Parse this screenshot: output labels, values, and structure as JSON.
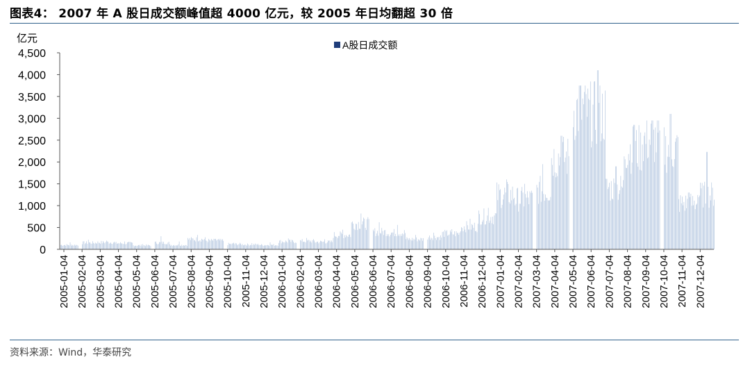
{
  "title": "图表4： 2007 年 A 股日成交额峰值超 4000 亿元，较 2005 年日均翻超 30 倍",
  "source": "资料来源：Wind，华泰研究",
  "chart_data": {
    "type": "bar",
    "unit_label": "亿元",
    "legend": [
      "A股日成交额"
    ],
    "legend_position": "top-center",
    "ylim": [
      0,
      4500
    ],
    "yticks": [
      0,
      500,
      1000,
      1500,
      2000,
      2500,
      3000,
      3500,
      4000,
      4500
    ],
    "ytick_labels": [
      "0",
      "500",
      "1,000",
      "1,500",
      "2,000",
      "2,500",
      "3,000",
      "3,500",
      "4,000",
      "4,500"
    ],
    "xtick_labels": [
      "2005-01-04",
      "2005-02-04",
      "2005-03-04",
      "2005-04-04",
      "2005-05-04",
      "2005-06-04",
      "2005-07-04",
      "2005-08-04",
      "2005-09-04",
      "2005-10-04",
      "2005-11-04",
      "2005-12-04",
      "2006-01-04",
      "2006-02-04",
      "2006-03-04",
      "2006-04-04",
      "2006-05-04",
      "2006-06-04",
      "2006-07-04",
      "2006-08-04",
      "2006-09-04",
      "2006-10-04",
      "2006-11-04",
      "2006-12-04",
      "2007-01-04",
      "2007-02-04",
      "2007-03-04",
      "2007-04-04",
      "2007-05-04",
      "2007-06-04",
      "2007-07-04",
      "2007-08-04",
      "2007-09-04",
      "2007-10-04",
      "2007-11-04",
      "2007-12-04"
    ],
    "series": [
      {
        "name": "A股日成交额",
        "color": "#a9bedb",
        "legend_color": "#1f3d7a",
        "monthly_levels": [
          100,
          150,
          160,
          140,
          90,
          150,
          100,
          230,
          200,
          120,
          110,
          100,
          180,
          190,
          170,
          330,
          590,
          400,
          380,
          230,
          280,
          360,
          520,
          750,
          1250,
          1150,
          1350,
          2100,
          3200,
          3100,
          1400,
          2300,
          2500,
          2300,
          1050,
          1250
        ],
        "monthly_peaks": [
          160,
          220,
          200,
          180,
          120,
          300,
          180,
          330,
          240,
          150,
          140,
          160,
          250,
          260,
          230,
          450,
          820,
          620,
          560,
          330,
          380,
          460,
          700,
          950,
          1600,
          1500,
          1950,
          2600,
          3750,
          4100,
          1900,
          2850,
          2950,
          3100,
          1300,
          2230
        ]
      }
    ],
    "grid": false
  }
}
